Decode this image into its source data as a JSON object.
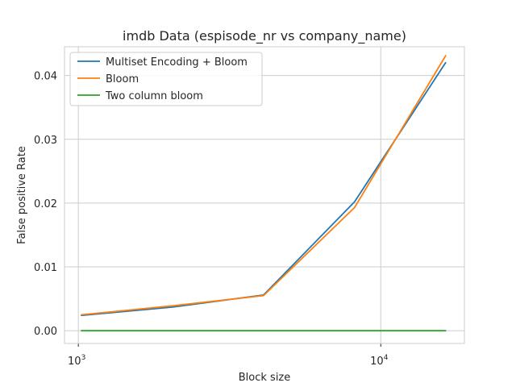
{
  "chart_data": {
    "type": "line",
    "title": "imdb Data (espisode_nr vs company_name)",
    "xlabel": "Block size",
    "ylabel": "False positive Rate",
    "xscale": "log",
    "xlim": [
      900,
      18900
    ],
    "ylim": [
      -0.002,
      0.0445
    ],
    "xticks": [
      {
        "value": 1000,
        "base": "10",
        "exp": "3"
      },
      {
        "value": 10000,
        "base": "10",
        "exp": "4"
      }
    ],
    "yticks": [
      {
        "value": 0.0,
        "label": "0.00"
      },
      {
        "value": 0.01,
        "label": "0.01"
      },
      {
        "value": 0.02,
        "label": "0.02"
      },
      {
        "value": 0.03,
        "label": "0.03"
      },
      {
        "value": 0.04,
        "label": "0.04"
      }
    ],
    "grid": true,
    "legend_position": "top-left",
    "x": [
      1024,
      2048,
      4096,
      8192,
      16384
    ],
    "series": [
      {
        "name": "Multiset Encoding + Bloom",
        "color": "#1f77b4",
        "values": [
          0.0024,
          0.0037,
          0.0056,
          0.0202,
          0.042
        ]
      },
      {
        "name": "Bloom",
        "color": "#ff7f0e",
        "values": [
          0.0025,
          0.0039,
          0.0055,
          0.0193,
          0.0431
        ]
      },
      {
        "name": "Two column bloom",
        "color": "#2ca02c",
        "values": [
          0.0,
          0.0,
          0.0,
          0.0,
          0.0
        ]
      }
    ]
  }
}
